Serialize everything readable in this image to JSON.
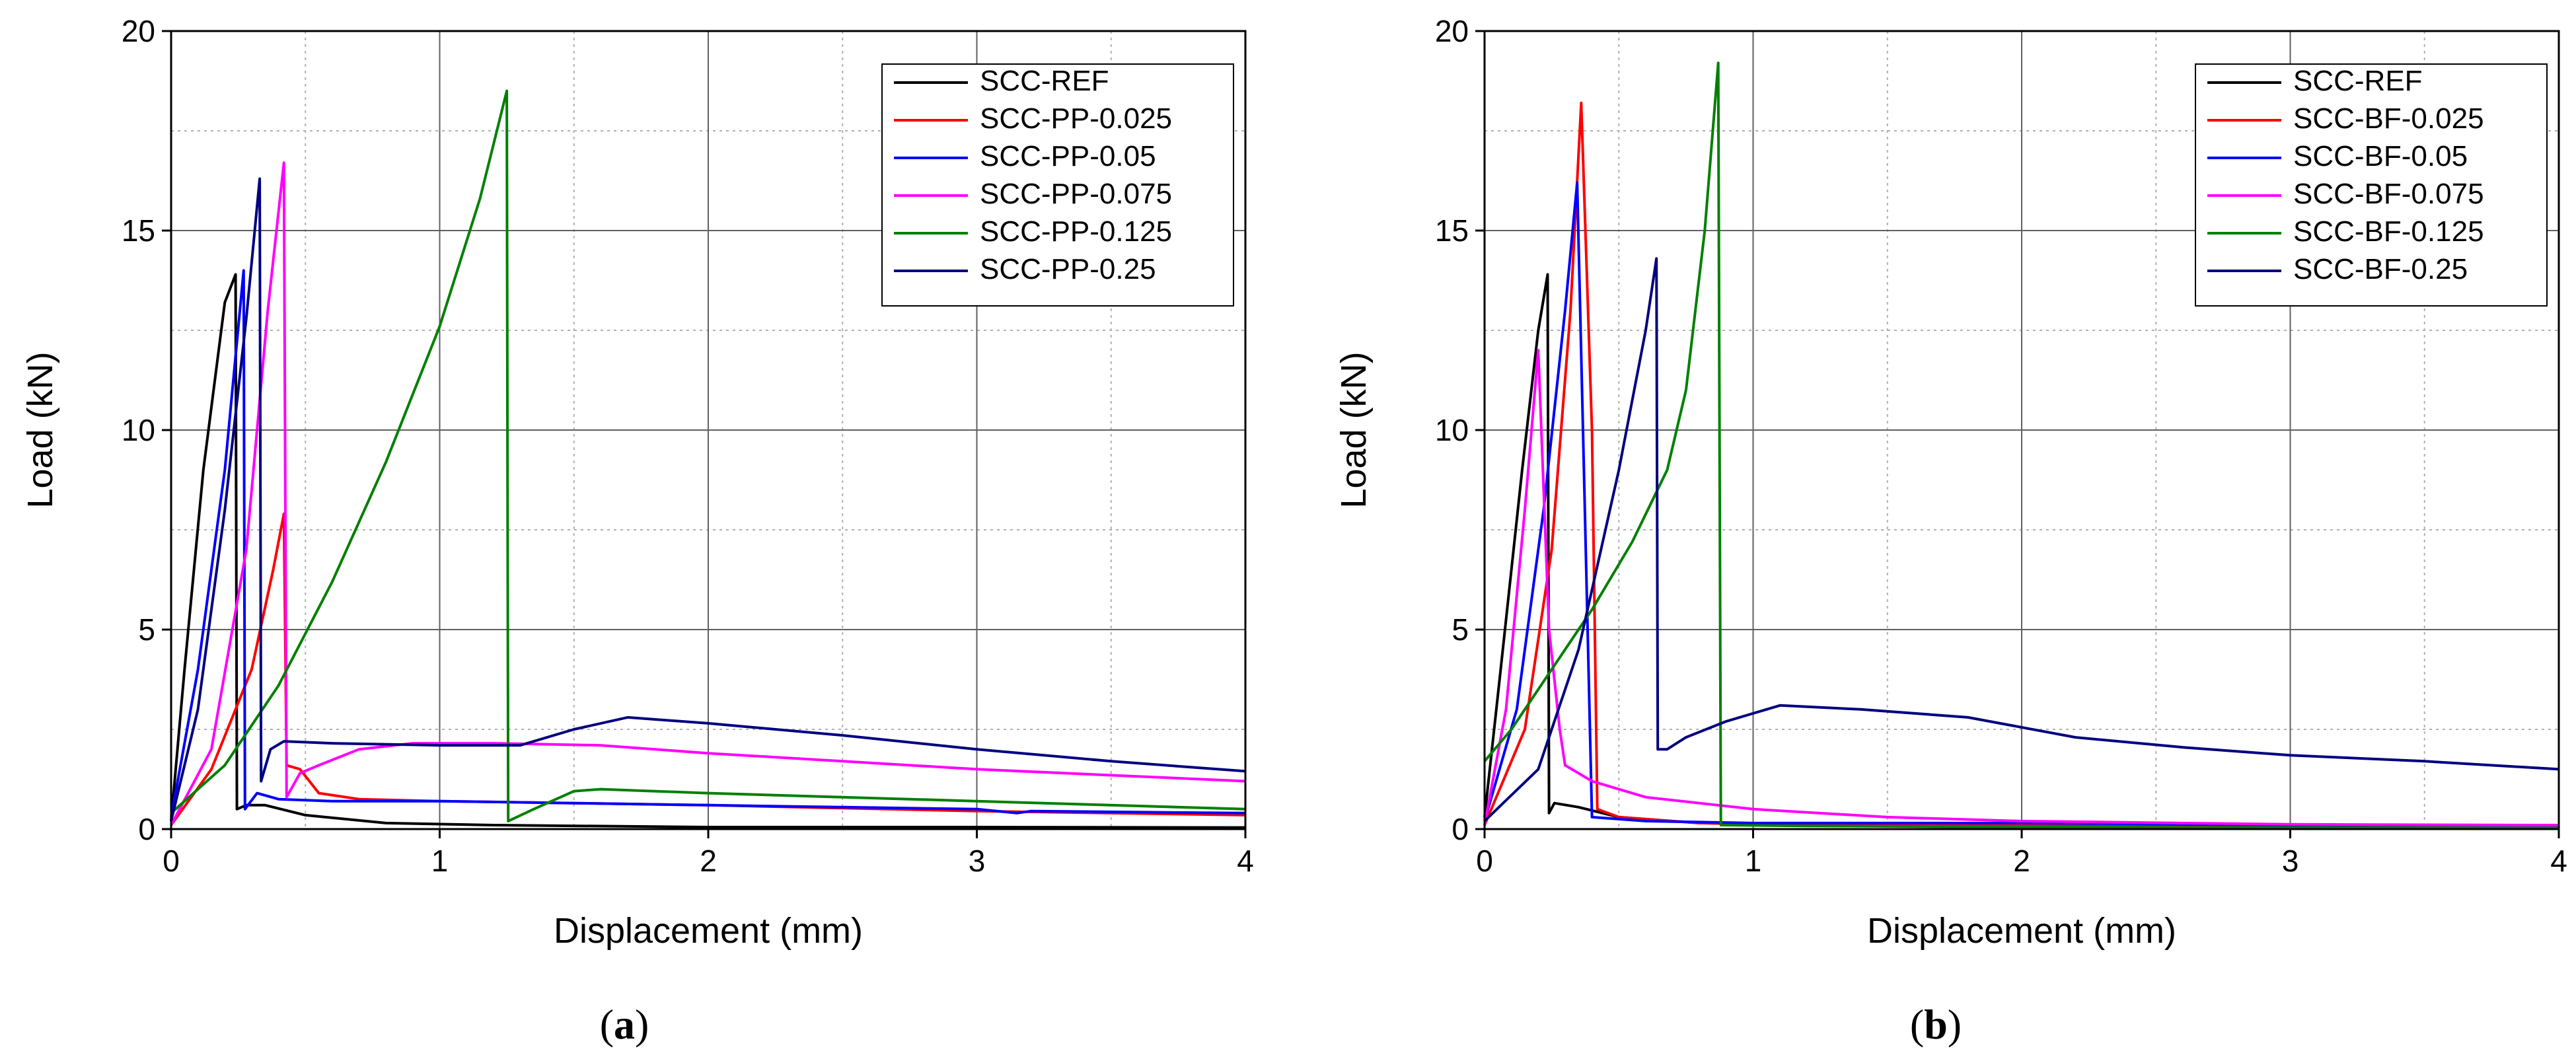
{
  "chart_data": [
    {
      "type": "line",
      "panel_label": "a",
      "xlabel": "Displacement (mm)",
      "ylabel": "Load (kN)",
      "xlim": [
        0,
        4
      ],
      "ylim": [
        0,
        20
      ],
      "xticks": [
        "0",
        "1",
        "2",
        "3",
        "4"
      ],
      "yticks": [
        "0",
        "5",
        "10",
        "15",
        "20"
      ],
      "grid": true,
      "legend_position": "top-right",
      "series": [
        {
          "name": "SCC-REF",
          "color": "#000000",
          "points": [
            [
              0,
              0.2
            ],
            [
              0.05,
              4
            ],
            [
              0.12,
              9
            ],
            [
              0.2,
              13.2
            ],
            [
              0.24,
              13.9
            ],
            [
              0.245,
              0.5
            ],
            [
              0.28,
              0.6
            ],
            [
              0.35,
              0.6
            ],
            [
              0.5,
              0.35
            ],
            [
              0.8,
              0.15
            ],
            [
              1.2,
              0.1
            ],
            [
              2,
              0.05
            ],
            [
              3,
              0.05
            ],
            [
              4,
              0.04
            ]
          ]
        },
        {
          "name": "SCC-PP-0.025",
          "color": "#ff0000",
          "points": [
            [
              0,
              0.1
            ],
            [
              0.15,
              1.5
            ],
            [
              0.3,
              4.0
            ],
            [
              0.38,
              6.5
            ],
            [
              0.42,
              7.9
            ],
            [
              0.43,
              1.6
            ],
            [
              0.48,
              1.5
            ],
            [
              0.55,
              0.9
            ],
            [
              0.7,
              0.75
            ],
            [
              1.0,
              0.7
            ],
            [
              1.5,
              0.65
            ],
            [
              2,
              0.6
            ],
            [
              3,
              0.45
            ],
            [
              4,
              0.35
            ]
          ]
        },
        {
          "name": "SCC-PP-0.05",
          "color": "#0000ff",
          "points": [
            [
              0,
              0.3
            ],
            [
              0.1,
              4
            ],
            [
              0.2,
              9
            ],
            [
              0.27,
              14.0
            ],
            [
              0.275,
              0.5
            ],
            [
              0.32,
              0.9
            ],
            [
              0.4,
              0.75
            ],
            [
              0.6,
              0.7
            ],
            [
              1.0,
              0.7
            ],
            [
              1.5,
              0.65
            ],
            [
              2,
              0.6
            ],
            [
              2.5,
              0.55
            ],
            [
              3,
              0.5
            ],
            [
              3.15,
              0.4
            ],
            [
              3.2,
              0.45
            ],
            [
              4,
              0.4
            ]
          ]
        },
        {
          "name": "SCC-PP-0.075",
          "color": "#ff00ff",
          "points": [
            [
              0,
              0.1
            ],
            [
              0.15,
              2
            ],
            [
              0.28,
              7
            ],
            [
              0.36,
              13
            ],
            [
              0.42,
              16.7
            ],
            [
              0.43,
              0.8
            ],
            [
              0.48,
              1.4
            ],
            [
              0.55,
              1.6
            ],
            [
              0.7,
              2.0
            ],
            [
              0.9,
              2.15
            ],
            [
              1.2,
              2.15
            ],
            [
              1.6,
              2.1
            ],
            [
              2,
              1.9
            ],
            [
              2.5,
              1.7
            ],
            [
              3,
              1.5
            ],
            [
              3.5,
              1.35
            ],
            [
              4,
              1.2
            ]
          ]
        },
        {
          "name": "SCC-PP-0.125",
          "color": "#008000",
          "points": [
            [
              0,
              0.4
            ],
            [
              0.2,
              1.6
            ],
            [
              0.4,
              3.6
            ],
            [
              0.6,
              6.2
            ],
            [
              0.8,
              9.2
            ],
            [
              1.0,
              12.6
            ],
            [
              1.15,
              15.8
            ],
            [
              1.25,
              18.5
            ],
            [
              1.255,
              0.2
            ],
            [
              1.35,
              0.5
            ],
            [
              1.5,
              0.95
            ],
            [
              1.6,
              1.0
            ],
            [
              2,
              0.9
            ],
            [
              2.5,
              0.8
            ],
            [
              3,
              0.7
            ],
            [
              3.5,
              0.6
            ],
            [
              4,
              0.5
            ]
          ]
        },
        {
          "name": "SCC-PP-0.25",
          "color": "#000080",
          "points": [
            [
              0,
              0.2
            ],
            [
              0.1,
              3
            ],
            [
              0.2,
              8
            ],
            [
              0.28,
              12.8
            ],
            [
              0.33,
              16.3
            ],
            [
              0.335,
              1.2
            ],
            [
              0.37,
              2.0
            ],
            [
              0.42,
              2.2
            ],
            [
              0.6,
              2.15
            ],
            [
              1.0,
              2.1
            ],
            [
              1.3,
              2.1
            ],
            [
              1.5,
              2.5
            ],
            [
              1.7,
              2.8
            ],
            [
              2.0,
              2.65
            ],
            [
              2.5,
              2.35
            ],
            [
              3,
              2.0
            ],
            [
              3.5,
              1.7
            ],
            [
              4,
              1.45
            ]
          ]
        }
      ]
    },
    {
      "type": "line",
      "panel_label": "b",
      "xlabel": "Displacement (mm)",
      "ylabel": "Load (kN)",
      "xlim": [
        0,
        4
      ],
      "ylim": [
        0,
        20
      ],
      "xticks": [
        "0",
        "1",
        "2",
        "3",
        "4"
      ],
      "yticks": [
        "0",
        "5",
        "10",
        "15",
        "20"
      ],
      "grid": true,
      "legend_position": "top-right",
      "series": [
        {
          "name": "SCC-REF",
          "color": "#000000",
          "points": [
            [
              0,
              0.3
            ],
            [
              0.06,
              4
            ],
            [
              0.14,
              9
            ],
            [
              0.2,
              12.5
            ],
            [
              0.235,
              13.9
            ],
            [
              0.24,
              0.4
            ],
            [
              0.26,
              0.65
            ],
            [
              0.35,
              0.55
            ],
            [
              0.5,
              0.3
            ],
            [
              0.8,
              0.15
            ],
            [
              1.2,
              0.1
            ],
            [
              2,
              0.05
            ],
            [
              3,
              0.04
            ],
            [
              4,
              0.03
            ]
          ]
        },
        {
          "name": "SCC-BF-0.025",
          "color": "#ff0000",
          "points": [
            [
              0,
              0.1
            ],
            [
              0.15,
              2.5
            ],
            [
              0.25,
              7
            ],
            [
              0.32,
              13
            ],
            [
              0.36,
              18.2
            ],
            [
              0.4,
              10
            ],
            [
              0.42,
              0.5
            ],
            [
              0.5,
              0.3
            ],
            [
              0.8,
              0.15
            ],
            [
              1.5,
              0.1
            ],
            [
              2,
              0.1
            ],
            [
              3,
              0.08
            ],
            [
              4,
              0.05
            ]
          ]
        },
        {
          "name": "SCC-BF-0.05",
          "color": "#0000ff",
          "points": [
            [
              0,
              0.2
            ],
            [
              0.12,
              3
            ],
            [
              0.22,
              8
            ],
            [
              0.3,
              13
            ],
            [
              0.345,
              16.2
            ],
            [
              0.37,
              9
            ],
            [
              0.4,
              0.3
            ],
            [
              0.6,
              0.2
            ],
            [
              1.0,
              0.15
            ],
            [
              2,
              0.15
            ],
            [
              3,
              0.1
            ],
            [
              4,
              0.08
            ]
          ]
        },
        {
          "name": "SCC-BF-0.075",
          "color": "#ff00ff",
          "points": [
            [
              0,
              0.1
            ],
            [
              0.08,
              3
            ],
            [
              0.15,
              8
            ],
            [
              0.2,
              12
            ],
            [
              0.24,
              5
            ],
            [
              0.28,
              2.5
            ],
            [
              0.3,
              1.6
            ],
            [
              0.4,
              1.2
            ],
            [
              0.6,
              0.8
            ],
            [
              1.0,
              0.5
            ],
            [
              1.5,
              0.3
            ],
            [
              2,
              0.2
            ],
            [
              3,
              0.12
            ],
            [
              4,
              0.1
            ]
          ]
        },
        {
          "name": "SCC-BF-0.125",
          "color": "#008000",
          "points": [
            [
              0,
              1.7
            ],
            [
              0.1,
              2.5
            ],
            [
              0.25,
              4
            ],
            [
              0.4,
              5.5
            ],
            [
              0.55,
              7.2
            ],
            [
              0.68,
              9.0
            ],
            [
              0.75,
              11
            ],
            [
              0.82,
              15
            ],
            [
              0.87,
              19.2
            ],
            [
              0.88,
              0.1
            ],
            [
              1.2,
              0.08
            ],
            [
              2,
              0.05
            ],
            [
              4,
              0.03
            ]
          ]
        },
        {
          "name": "SCC-BF-0.25",
          "color": "#000080",
          "points": [
            [
              0,
              0.2
            ],
            [
              0.2,
              1.5
            ],
            [
              0.35,
              4.5
            ],
            [
              0.5,
              9
            ],
            [
              0.6,
              12.5
            ],
            [
              0.64,
              14.3
            ],
            [
              0.645,
              2.0
            ],
            [
              0.68,
              2.0
            ],
            [
              0.75,
              2.3
            ],
            [
              0.9,
              2.7
            ],
            [
              1.1,
              3.1
            ],
            [
              1.4,
              3.0
            ],
            [
              1.8,
              2.8
            ],
            [
              2.2,
              2.3
            ],
            [
              2.6,
              2.05
            ],
            [
              3,
              1.85
            ],
            [
              3.5,
              1.7
            ],
            [
              4,
              1.5
            ]
          ]
        }
      ]
    }
  ]
}
